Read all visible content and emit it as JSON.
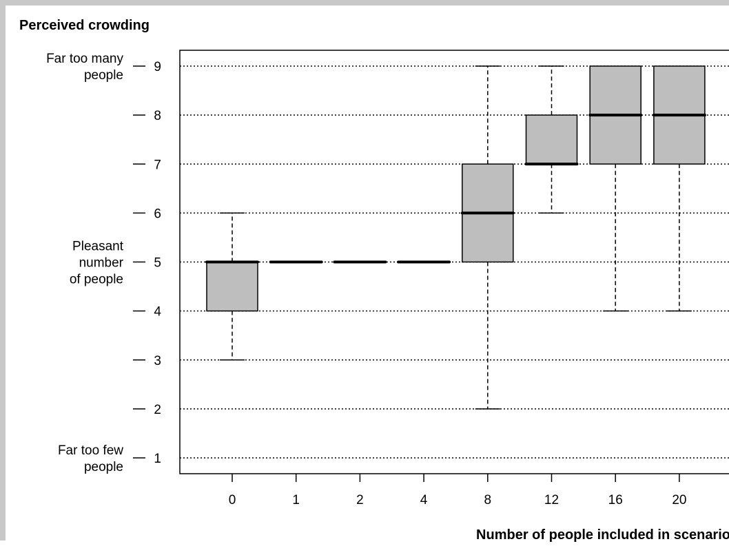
{
  "chart_data": {
    "type": "box",
    "title": "Perceived crowding",
    "xlabel": "Number of people included in scenario",
    "ylabel": "",
    "ylim": [
      1,
      9
    ],
    "y_ticks": [
      1,
      2,
      3,
      4,
      5,
      6,
      7,
      8,
      9
    ],
    "grid": "horizontal dotted",
    "categories": [
      "0",
      "1",
      "2",
      "4",
      "8",
      "12",
      "16",
      "20"
    ],
    "boxes": [
      {
        "category": "0",
        "whisker_low": 3,
        "q1": 4,
        "median": 5,
        "q3": 5,
        "whisker_high": 6
      },
      {
        "category": "1",
        "whisker_low": 5,
        "q1": 5,
        "median": 5,
        "q3": 5,
        "whisker_high": 5
      },
      {
        "category": "2",
        "whisker_low": 5,
        "q1": 5,
        "median": 5,
        "q3": 5,
        "whisker_high": 5
      },
      {
        "category": "4",
        "whisker_low": 5,
        "q1": 5,
        "median": 5,
        "q3": 5,
        "whisker_high": 5
      },
      {
        "category": "8",
        "whisker_low": 2,
        "q1": 5,
        "median": 6,
        "q3": 7,
        "whisker_high": 9
      },
      {
        "category": "12",
        "whisker_low": 6,
        "q1": 7,
        "median": 7,
        "q3": 8,
        "whisker_high": 9
      },
      {
        "category": "16",
        "whisker_low": 4,
        "q1": 7,
        "median": 8,
        "q3": 9,
        "whisker_high": 9
      },
      {
        "category": "20",
        "whisker_low": 4,
        "q1": 7,
        "median": 8,
        "q3": 9,
        "whisker_high": 9
      }
    ],
    "y_anchor_labels": [
      {
        "value": 9,
        "lines": [
          "Far too many",
          "people"
        ]
      },
      {
        "value": 5,
        "lines": [
          "Pleasant",
          "number",
          "of people"
        ]
      },
      {
        "value": 1,
        "lines": [
          "Far too few",
          "people"
        ]
      }
    ],
    "box_fill": "#bebebe",
    "line_color": "#000000"
  }
}
